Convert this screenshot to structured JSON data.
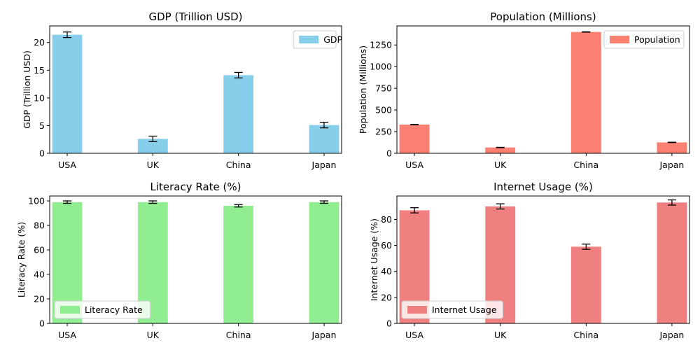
{
  "chart_data": [
    {
      "type": "bar",
      "title": "GDP (Trillion USD)",
      "xlabel": "",
      "ylabel": "GDP (Trillion USD)",
      "categories": [
        "USA",
        "UK",
        "China",
        "Japan"
      ],
      "series": [
        {
          "name": "GDP",
          "values": [
            21.4,
            2.6,
            14.1,
            5.1
          ],
          "errors": [
            0.5,
            0.5,
            0.5,
            0.5
          ]
        }
      ],
      "ylim": [
        0,
        23
      ],
      "yticks": [
        0,
        5,
        10,
        15,
        20
      ],
      "color": "#87CEEB",
      "legend": "top-right",
      "grid": false
    },
    {
      "type": "bar",
      "title": "Population (Millions)",
      "xlabel": "",
      "ylabel": "Population (Millions)",
      "categories": [
        "USA",
        "UK",
        "China",
        "Japan"
      ],
      "series": [
        {
          "name": "Population",
          "values": [
            331,
            67,
            1400,
            126
          ],
          "errors": [
            2,
            2,
            2,
            2
          ]
        }
      ],
      "ylim": [
        0,
        1470
      ],
      "yticks": [
        0,
        250,
        500,
        750,
        1000,
        1250
      ],
      "color": "#FA8072",
      "legend": "top-right",
      "grid": false
    },
    {
      "type": "bar",
      "title": "Literacy Rate (%)",
      "xlabel": "",
      "ylabel": "Literacy Rate (%)",
      "categories": [
        "USA",
        "UK",
        "China",
        "Japan"
      ],
      "series": [
        {
          "name": "Literacy Rate",
          "values": [
            99,
            99,
            96,
            99
          ],
          "errors": [
            1,
            1,
            1,
            1
          ]
        }
      ],
      "ylim": [
        0,
        104
      ],
      "yticks": [
        0,
        20,
        40,
        60,
        80,
        100
      ],
      "color": "#90EE90",
      "legend": "bottom-left",
      "grid": false
    },
    {
      "type": "bar",
      "title": "Internet Usage (%)",
      "xlabel": "",
      "ylabel": "Internet Usage (%)",
      "categories": [
        "USA",
        "UK",
        "China",
        "Japan"
      ],
      "series": [
        {
          "name": "Internet Usage",
          "values": [
            87,
            90,
            59,
            93
          ],
          "errors": [
            2,
            2,
            2,
            2
          ]
        }
      ],
      "ylim": [
        0,
        98
      ],
      "yticks": [
        0,
        20,
        40,
        60,
        80
      ],
      "color": "#F08080",
      "legend": "bottom-left",
      "grid": false
    }
  ]
}
